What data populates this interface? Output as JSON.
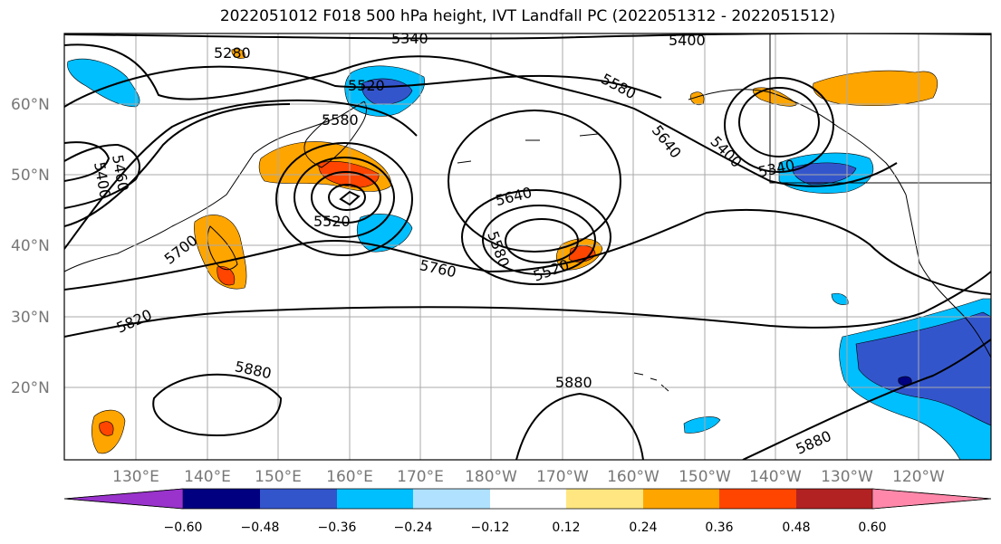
{
  "title": "2022051012 F018 500 hPa height, IVT Landfall PC (2022051312 - 2022051512)",
  "map": {
    "lat_labels": [
      "60°N",
      "50°N",
      "40°N",
      "30°N",
      "20°N"
    ],
    "lon_labels": [
      "130°E",
      "140°E",
      "150°E",
      "160°E",
      "170°E",
      "180°W",
      "170°W",
      "160°W",
      "150°W",
      "140°W",
      "130°W",
      "120°W"
    ],
    "grid": true,
    "land_color": "#ffffff",
    "contour_labels": [
      "5340",
      "5400",
      "5280",
      "5520",
      "5580",
      "5580",
      "5640",
      "5400",
      "5340",
      "5460",
      "5400",
      "5700",
      "5520",
      "5640",
      "5580",
      "5520",
      "5760",
      "5820",
      "5880",
      "5880",
      "5880"
    ]
  },
  "colorbar": {
    "colors": [
      "#9933cc",
      "#000080",
      "#3355cc",
      "#00bfff",
      "#b0e2ff",
      "#ffffff",
      "#ffe680",
      "#ffa500",
      "#ff4500",
      "#b22222",
      "#ff88aa"
    ],
    "tick_labels": [
      "−0.60",
      "−0.48",
      "−0.36",
      "−0.24",
      "−0.12",
      "0.12",
      "0.24",
      "0.36",
      "0.48",
      "0.60"
    ]
  }
}
